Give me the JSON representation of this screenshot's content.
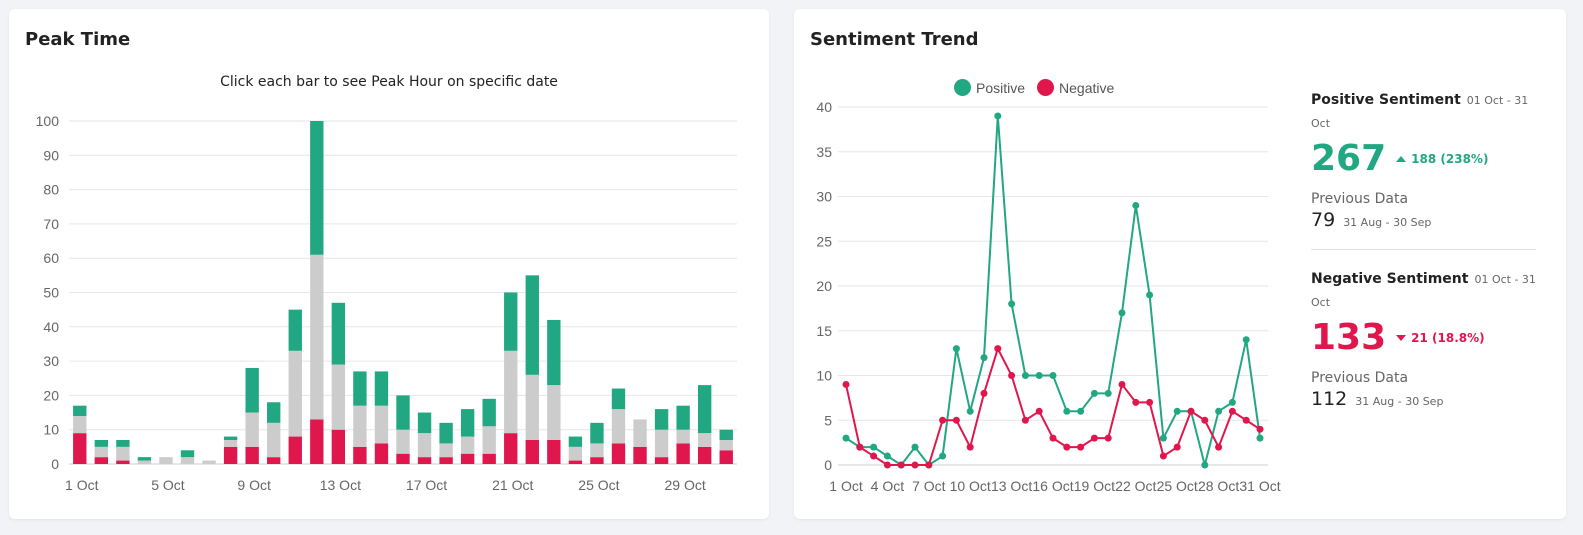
{
  "colors": {
    "positive": "#22a783",
    "negative": "#e0174d",
    "neutral": "#cccccc"
  },
  "peak": {
    "title": "Peak Time",
    "subtitle": "Click each bar to see Peak Hour on specific date"
  },
  "sentiment": {
    "title": "Sentiment Trend",
    "legend": {
      "positive": "Positive",
      "negative": "Negative"
    },
    "positive": {
      "label": "Positive Sentiment",
      "range": "01 Oct - 31 Oct",
      "value": "267",
      "delta": "188 (238%)",
      "prev_label": "Previous Data",
      "prev_value": "79",
      "prev_range": "31 Aug - 30 Sep"
    },
    "negative": {
      "label": "Negative Sentiment",
      "range": "01 Oct - 31 Oct",
      "value": "133",
      "delta": "21 (18.8%)",
      "prev_label": "Previous Data",
      "prev_value": "112",
      "prev_range": "31 Aug - 30 Sep"
    }
  },
  "chart_data": [
    {
      "type": "bar",
      "stacked": true,
      "categories": [
        "1 Oct",
        "2 Oct",
        "3 Oct",
        "4 Oct",
        "5 Oct",
        "6 Oct",
        "7 Oct",
        "8 Oct",
        "9 Oct",
        "10 Oct",
        "11 Oct",
        "12 Oct",
        "13 Oct",
        "14 Oct",
        "15 Oct",
        "16 Oct",
        "17 Oct",
        "18 Oct",
        "19 Oct",
        "20 Oct",
        "21 Oct",
        "22 Oct",
        "23 Oct",
        "24 Oct",
        "25 Oct",
        "26 Oct",
        "27 Oct",
        "28 Oct",
        "29 Oct",
        "30 Oct",
        "31 Oct"
      ],
      "x_tick_labels": [
        "1 Oct",
        "5 Oct",
        "9 Oct",
        "13 Oct",
        "17 Oct",
        "21 Oct",
        "25 Oct",
        "29 Oct"
      ],
      "y_ticks": [
        0,
        10,
        20,
        30,
        40,
        50,
        60,
        70,
        80,
        90,
        100
      ],
      "ylim": [
        0,
        100
      ],
      "grid": true,
      "series": [
        {
          "key": "negative",
          "values": [
            9,
            2,
            1,
            0,
            0,
            0,
            0,
            5,
            5,
            2,
            8,
            13,
            10,
            5,
            6,
            3,
            2,
            2,
            3,
            3,
            9,
            7,
            7,
            1,
            2,
            6,
            5,
            2,
            6,
            5,
            4
          ]
        },
        {
          "key": "neutral",
          "values": [
            5,
            3,
            4,
            1,
            2,
            2,
            1,
            2,
            10,
            10,
            25,
            48,
            19,
            12,
            11,
            7,
            7,
            4,
            5,
            8,
            24,
            19,
            16,
            4,
            4,
            10,
            8,
            8,
            4,
            4,
            3
          ]
        },
        {
          "key": "positive",
          "values": [
            3,
            2,
            2,
            1,
            0,
            2,
            0,
            1,
            13,
            6,
            12,
            39,
            18,
            10,
            10,
            10,
            6,
            6,
            8,
            8,
            17,
            29,
            19,
            3,
            6,
            6,
            0,
            6,
            7,
            14,
            3
          ]
        }
      ]
    },
    {
      "type": "line",
      "x": [
        "1 Oct",
        "2 Oct",
        "3 Oct",
        "4 Oct",
        "5 Oct",
        "6 Oct",
        "7 Oct",
        "8 Oct",
        "9 Oct",
        "10 Oct",
        "11 Oct",
        "12 Oct",
        "13 Oct",
        "14 Oct",
        "15 Oct",
        "16 Oct",
        "17 Oct",
        "18 Oct",
        "19 Oct",
        "20 Oct",
        "21 Oct",
        "22 Oct",
        "23 Oct",
        "24 Oct",
        "25 Oct",
        "26 Oct",
        "27 Oct",
        "28 Oct",
        "29 Oct",
        "30 Oct",
        "31 Oct"
      ],
      "x_tick_labels": [
        "1 Oct",
        "4 Oct",
        "7 Oct",
        "10 Oct",
        "13 Oct",
        "16 Oct",
        "19 Oct",
        "22 Oct",
        "25 Oct",
        "28 Oct",
        "31 Oct"
      ],
      "y_ticks": [
        0,
        5,
        10,
        15,
        20,
        25,
        30,
        35,
        40
      ],
      "ylim": [
        0,
        40
      ],
      "grid": true,
      "legend": "top",
      "series": [
        {
          "name": "Positive",
          "values": [
            3,
            2,
            2,
            1,
            0,
            2,
            0,
            1,
            13,
            6,
            12,
            39,
            18,
            10,
            10,
            10,
            6,
            6,
            8,
            8,
            17,
            29,
            19,
            3,
            6,
            6,
            0,
            6,
            7,
            14,
            3
          ]
        },
        {
          "name": "Negative",
          "values": [
            9,
            2,
            1,
            0,
            0,
            0,
            0,
            5,
            5,
            2,
            8,
            13,
            10,
            5,
            6,
            3,
            2,
            2,
            3,
            3,
            9,
            7,
            7,
            1,
            2,
            6,
            5,
            2,
            6,
            5,
            4
          ]
        }
      ]
    }
  ]
}
